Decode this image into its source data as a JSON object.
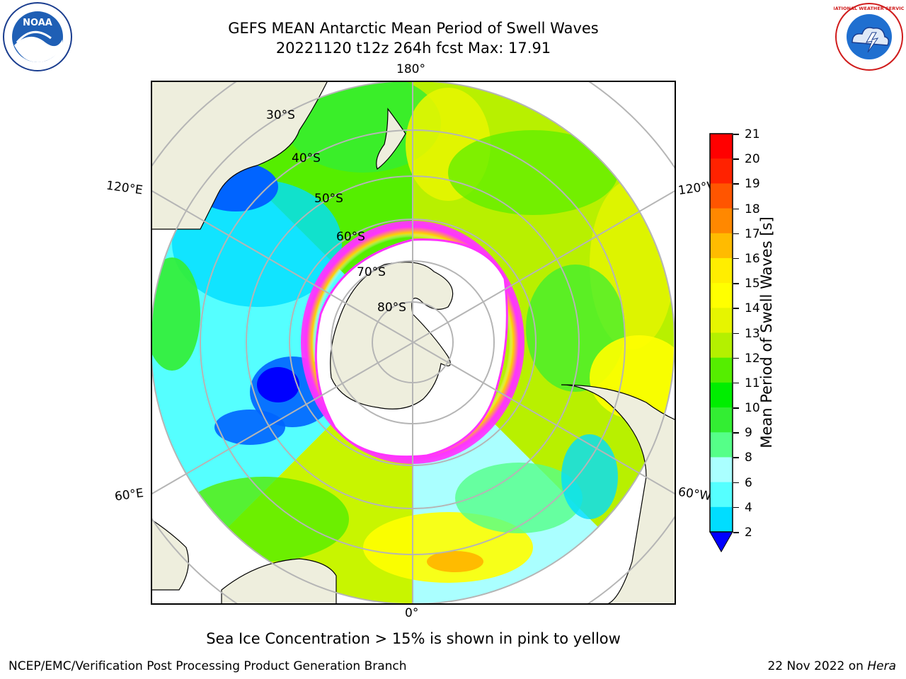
{
  "title": {
    "line1": "GEFS MEAN Antarctic Mean Period of Swell Waves",
    "line2": "20221120 t12z 264h fcst   Max: 17.91"
  },
  "logos": {
    "left": {
      "icon": "noaa-logo",
      "text": "NOAA"
    },
    "right": {
      "icon": "national-weather-service-logo",
      "text": "NATIONAL WEATHER SERVICE"
    }
  },
  "map": {
    "projection": "south-polar-stereographic",
    "longitude_labels": {
      "top": "180°",
      "bottom": "0°",
      "upper_left": "120°E",
      "upper_right": "120°W",
      "lower_left": "60°E",
      "lower_right": "60°W"
    },
    "latitude_labels": [
      "30°S",
      "40°S",
      "50°S",
      "60°S",
      "70°S",
      "80°S"
    ],
    "colors": {
      "land": "#eeeedd",
      "grid": "#b5b5b5",
      "sea_ice_low": "#ff33ff",
      "sea_ice_high": "#ffd000"
    }
  },
  "colorbar": {
    "label": "Mean Period of Swell Waves [s]",
    "ticks": [
      "2",
      "4",
      "6",
      "8",
      "9",
      "10",
      "11",
      "12",
      "13",
      "14",
      "15",
      "16",
      "17",
      "18",
      "19",
      "20",
      "21"
    ],
    "colors": [
      "#0000ff",
      "#0064ff",
      "#00ddff",
      "#55ffff",
      "#aaffff",
      "#55ff88",
      "#33ee33",
      "#00ee00",
      "#55ee00",
      "#b4f000",
      "#e6f500",
      "#ffff00",
      "#ffee00",
      "#ffbb00",
      "#ff8800",
      "#ff5500",
      "#ff2200",
      "#ff0000"
    ],
    "under_color": "#0000ff"
  },
  "note": "Sea Ice Concentration > 15% is shown in pink to yellow",
  "footer": {
    "left": "NCEP/EMC/Verification Post Processing Product Generation Branch",
    "right_date": "22 Nov 2022 on",
    "right_host": "Hera"
  }
}
